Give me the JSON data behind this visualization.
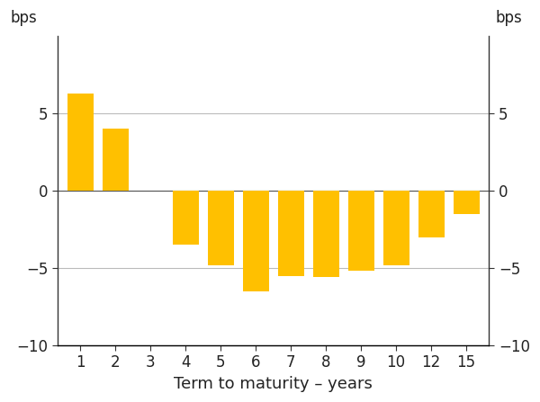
{
  "categories": [
    1,
    2,
    3,
    4,
    5,
    6,
    7,
    8,
    9,
    10,
    12,
    15
  ],
  "values": [
    6.3,
    4.0,
    0.0,
    -3.5,
    -4.8,
    -6.5,
    -5.5,
    -5.6,
    -5.2,
    -4.8,
    -3.0,
    -1.5
  ],
  "bar_color": "#FFC000",
  "bar_width": 0.75,
  "ylim": [
    -10,
    10
  ],
  "yticks": [
    -10,
    -5,
    0,
    5
  ],
  "xtick_labels": [
    "1",
    "2",
    "3",
    "4",
    "5",
    "6",
    "7",
    "8",
    "9",
    "10",
    "12",
    "15"
  ],
  "xlabel": "Term to maturity – years",
  "ylabel_left": "bps",
  "ylabel_right": "bps",
  "grid_color": "#bbbbbb",
  "background_color": "#ffffff",
  "xlabel_fontsize": 13,
  "ylabel_fontsize": 12,
  "tick_fontsize": 12,
  "spine_color": "#333333"
}
